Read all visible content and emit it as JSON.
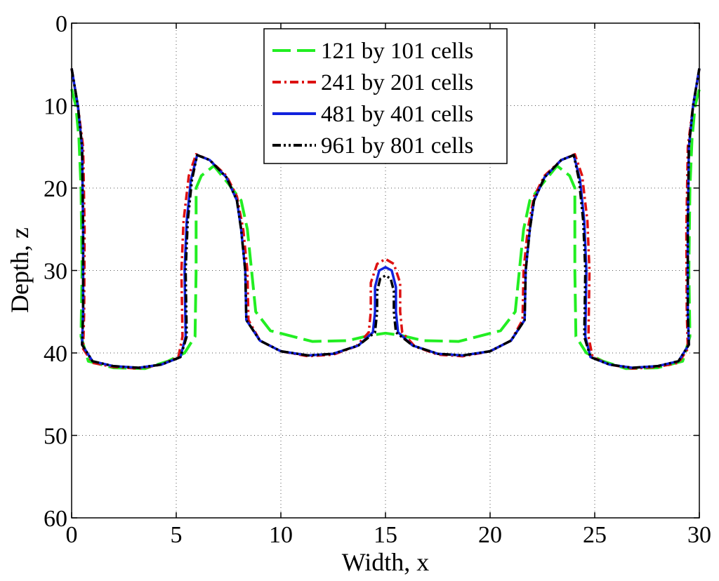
{
  "chart_data": {
    "type": "line",
    "title": "",
    "xlabel": "Width, x",
    "ylabel": "Depth, z",
    "xlim": [
      0,
      30
    ],
    "ylim": [
      0,
      60
    ],
    "y_reversed": true,
    "grid": true,
    "legend_position": "top-center",
    "xticks": [
      0,
      5,
      10,
      15,
      20,
      25,
      30
    ],
    "yticks": [
      0,
      10,
      20,
      30,
      40,
      50,
      60
    ],
    "series": [
      {
        "name": "121 by 101 cells",
        "color": "#22ee22",
        "style": "dashed",
        "segments": [
          [
            [
              0,
              8
            ],
            [
              0.2,
              10
            ],
            [
              0.35,
              14
            ],
            [
              0.45,
              20
            ],
            [
              0.5,
              30
            ],
            [
              0.45,
              38
            ],
            [
              0.8,
              41
            ],
            [
              2,
              41.8
            ],
            [
              3.5,
              41.9
            ],
            [
              4.6,
              41
            ],
            [
              5.4,
              40
            ],
            [
              5.9,
              38
            ],
            [
              5.95,
              30
            ],
            [
              5.95,
              20
            ],
            [
              6.2,
              18.5
            ],
            [
              6.8,
              17.3
            ],
            [
              7.5,
              19.5
            ],
            [
              8.1,
              21.5
            ],
            [
              8.4,
              25
            ],
            [
              8.6,
              30
            ],
            [
              8.8,
              35
            ],
            [
              9.5,
              37.3
            ],
            [
              11.5,
              38.6
            ],
            [
              13.2,
              38.5
            ],
            [
              14.2,
              37.9
            ],
            [
              15,
              37.6
            ],
            [
              15.8,
              37.9
            ],
            [
              16.8,
              38.5
            ],
            [
              18.5,
              38.6
            ],
            [
              20.5,
              37.3
            ],
            [
              21.2,
              35
            ],
            [
              21.4,
              30
            ],
            [
              21.6,
              25
            ],
            [
              21.9,
              21.5
            ],
            [
              22.5,
              19.5
            ],
            [
              23.2,
              17.3
            ],
            [
              23.8,
              18.5
            ],
            [
              24.05,
              20
            ],
            [
              24.05,
              30
            ],
            [
              24.1,
              38
            ],
            [
              24.6,
              40
            ],
            [
              25.4,
              41
            ],
            [
              26.5,
              41.9
            ],
            [
              28,
              41.8
            ],
            [
              29.2,
              41
            ],
            [
              29.55,
              38
            ],
            [
              29.5,
              30
            ],
            [
              29.55,
              20
            ],
            [
              29.65,
              14
            ],
            [
              29.8,
              10
            ],
            [
              30,
              8
            ]
          ]
        ]
      },
      {
        "name": "241 by 201 cells",
        "color": "#dd1111",
        "style": "dashdot",
        "segments": [
          [
            [
              0,
              5.5
            ],
            [
              0.3,
              10
            ],
            [
              0.55,
              15
            ],
            [
              0.62,
              25
            ],
            [
              0.6,
              35
            ],
            [
              0.55,
              39.5
            ],
            [
              1,
              41.2
            ],
            [
              2,
              41.7
            ],
            [
              3.2,
              41.9
            ],
            [
              4.3,
              41.4
            ],
            [
              5.1,
              40.5
            ],
            [
              5.3,
              38
            ],
            [
              5.25,
              30
            ],
            [
              5.35,
              24
            ],
            [
              5.6,
              18.5
            ],
            [
              5.95,
              15.9
            ],
            [
              6.6,
              16.6
            ],
            [
              7.4,
              18.5
            ],
            [
              7.9,
              21
            ],
            [
              8.2,
              25
            ],
            [
              8.4,
              30
            ],
            [
              8.45,
              36
            ],
            [
              9,
              38.5
            ],
            [
              10,
              39.8
            ],
            [
              11.3,
              40.4
            ],
            [
              12.5,
              40.2
            ],
            [
              13.6,
              39.2
            ],
            [
              14.2,
              37.5
            ],
            [
              14.3,
              35
            ],
            [
              14.3,
              31.5
            ],
            [
              14.6,
              29.2
            ],
            [
              15,
              28.6
            ],
            [
              15.4,
              29.2
            ],
            [
              15.7,
              31.5
            ],
            [
              15.7,
              35
            ],
            [
              15.8,
              37.5
            ],
            [
              16.4,
              39.2
            ],
            [
              17.5,
              40.2
            ],
            [
              18.7,
              40.4
            ],
            [
              20,
              39.8
            ],
            [
              21,
              38.5
            ],
            [
              21.55,
              36
            ],
            [
              21.6,
              30
            ],
            [
              21.8,
              25
            ],
            [
              22.1,
              21
            ],
            [
              22.6,
              18.5
            ],
            [
              23.4,
              16.6
            ],
            [
              24.05,
              15.9
            ],
            [
              24.4,
              18.5
            ],
            [
              24.65,
              24
            ],
            [
              24.75,
              30
            ],
            [
              24.7,
              38
            ],
            [
              24.9,
              40.5
            ],
            [
              25.7,
              41.4
            ],
            [
              26.8,
              41.9
            ],
            [
              28,
              41.7
            ],
            [
              29,
              41.2
            ],
            [
              29.45,
              39.5
            ],
            [
              29.4,
              35
            ],
            [
              29.38,
              25
            ],
            [
              29.45,
              15
            ],
            [
              29.7,
              10
            ],
            [
              30,
              5.5
            ]
          ]
        ]
      },
      {
        "name": "481 by 401 cells",
        "color": "#1122dd",
        "style": "solid",
        "segments": [
          [
            [
              0,
              5.5
            ],
            [
              0.3,
              10
            ],
            [
              0.5,
              15
            ],
            [
              0.55,
              25
            ],
            [
              0.55,
              35
            ],
            [
              0.5,
              39
            ],
            [
              1,
              41
            ],
            [
              2,
              41.6
            ],
            [
              3.2,
              41.8
            ],
            [
              4.3,
              41.4
            ],
            [
              5.2,
              40.5
            ],
            [
              5.45,
              38
            ],
            [
              5.4,
              30
            ],
            [
              5.5,
              24
            ],
            [
              5.7,
              19
            ],
            [
              6,
              16
            ],
            [
              6.6,
              16.6
            ],
            [
              7.4,
              18.7
            ],
            [
              7.9,
              21.5
            ],
            [
              8.1,
              25
            ],
            [
              8.3,
              30
            ],
            [
              8.35,
              36
            ],
            [
              9,
              38.5
            ],
            [
              10,
              39.8
            ],
            [
              11.3,
              40.3
            ],
            [
              12.5,
              40.1
            ],
            [
              13.7,
              39.1
            ],
            [
              14.4,
              37.5
            ],
            [
              14.5,
              35
            ],
            [
              14.5,
              32
            ],
            [
              14.7,
              30
            ],
            [
              15,
              29.6
            ],
            [
              15.3,
              30
            ],
            [
              15.5,
              32
            ],
            [
              15.5,
              35
            ],
            [
              15.6,
              37.5
            ],
            [
              16.3,
              39.1
            ],
            [
              17.5,
              40.1
            ],
            [
              18.7,
              40.3
            ],
            [
              20,
              39.8
            ],
            [
              21,
              38.5
            ],
            [
              21.65,
              36
            ],
            [
              21.7,
              30
            ],
            [
              21.9,
              25
            ],
            [
              22.1,
              21.5
            ],
            [
              22.6,
              18.7
            ],
            [
              23.4,
              16.6
            ],
            [
              24,
              16
            ],
            [
              24.3,
              19
            ],
            [
              24.5,
              24
            ],
            [
              24.6,
              30
            ],
            [
              24.55,
              38
            ],
            [
              24.8,
              40.5
            ],
            [
              25.7,
              41.4
            ],
            [
              26.8,
              41.8
            ],
            [
              28,
              41.6
            ],
            [
              29,
              41
            ],
            [
              29.5,
              39
            ],
            [
              29.45,
              35
            ],
            [
              29.45,
              25
            ],
            [
              29.5,
              15
            ],
            [
              29.7,
              10
            ],
            [
              30,
              5.5
            ]
          ]
        ]
      },
      {
        "name": "961 by 801 cells",
        "color": "#000000",
        "style": "dashdotdot",
        "segments": [
          [
            [
              0,
              5.5
            ],
            [
              0.3,
              10
            ],
            [
              0.5,
              15
            ],
            [
              0.55,
              25
            ],
            [
              0.55,
              35
            ],
            [
              0.5,
              39
            ],
            [
              1,
              41
            ],
            [
              2,
              41.6
            ],
            [
              3.2,
              41.8
            ],
            [
              4.3,
              41.4
            ],
            [
              5.2,
              40.5
            ],
            [
              5.5,
              38
            ],
            [
              5.45,
              30
            ],
            [
              5.55,
              24
            ],
            [
              5.75,
              19
            ],
            [
              6,
              16
            ],
            [
              6.6,
              16.6
            ],
            [
              7.4,
              18.7
            ],
            [
              7.9,
              21.5
            ],
            [
              8.1,
              25
            ],
            [
              8.3,
              30
            ],
            [
              8.35,
              36
            ],
            [
              9,
              38.5
            ],
            [
              10,
              39.8
            ],
            [
              11.3,
              40.3
            ],
            [
              12.5,
              40.1
            ],
            [
              13.7,
              39.1
            ],
            [
              14.5,
              37.5
            ],
            [
              14.6,
              35
            ],
            [
              14.6,
              32.5
            ],
            [
              14.75,
              31
            ],
            [
              15,
              30.6
            ],
            [
              15.25,
              31
            ],
            [
              15.4,
              32.5
            ],
            [
              15.4,
              35
            ],
            [
              15.5,
              37.5
            ],
            [
              16.3,
              39.1
            ],
            [
              17.5,
              40.1
            ],
            [
              18.7,
              40.3
            ],
            [
              20,
              39.8
            ],
            [
              21,
              38.5
            ],
            [
              21.65,
              36
            ],
            [
              21.7,
              30
            ],
            [
              21.9,
              25
            ],
            [
              22.1,
              21.5
            ],
            [
              22.6,
              18.7
            ],
            [
              23.4,
              16.6
            ],
            [
              24,
              16
            ],
            [
              24.25,
              19
            ],
            [
              24.45,
              24
            ],
            [
              24.55,
              30
            ],
            [
              24.5,
              38
            ],
            [
              24.8,
              40.5
            ],
            [
              25.7,
              41.4
            ],
            [
              26.8,
              41.8
            ],
            [
              28,
              41.6
            ],
            [
              29,
              41
            ],
            [
              29.5,
              39
            ],
            [
              29.45,
              35
            ],
            [
              29.45,
              25
            ],
            [
              29.5,
              15
            ],
            [
              29.7,
              10
            ],
            [
              30,
              5.5
            ]
          ]
        ]
      }
    ]
  }
}
